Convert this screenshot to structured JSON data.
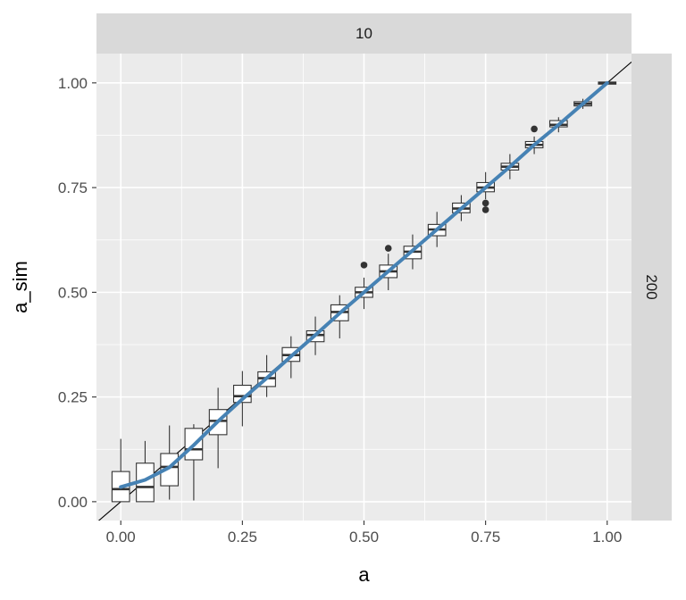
{
  "chart_data": {
    "type": "box",
    "xlabel": "a",
    "ylabel": "a_sim",
    "facet_col_label": "10",
    "facet_row_label": "200",
    "xlim": [
      -0.05,
      1.05
    ],
    "ylim": [
      -0.045,
      1.07
    ],
    "x_ticks": [
      0.0,
      0.25,
      0.5,
      0.75,
      1.0
    ],
    "x_tick_labels": [
      "0.00",
      "0.25",
      "0.50",
      "0.75",
      "1.00"
    ],
    "y_ticks": [
      0.0,
      0.25,
      0.5,
      0.75,
      1.0
    ],
    "y_tick_labels": [
      "0.00",
      "0.25",
      "0.50",
      "0.75",
      "1.00"
    ],
    "boxes": [
      {
        "x": 0.0,
        "ymin": 0.0,
        "q1": 0.0,
        "median": 0.03,
        "q3": 0.072,
        "ymax": 0.15
      },
      {
        "x": 0.05,
        "ymin": 0.0,
        "q1": 0.0,
        "median": 0.035,
        "q3": 0.092,
        "ymax": 0.145
      },
      {
        "x": 0.1,
        "ymin": 0.005,
        "q1": 0.038,
        "median": 0.083,
        "q3": 0.115,
        "ymax": 0.182
      },
      {
        "x": 0.15,
        "ymin": 0.003,
        "q1": 0.1,
        "median": 0.125,
        "q3": 0.175,
        "ymax": 0.185
      },
      {
        "x": 0.2,
        "ymin": 0.08,
        "q1": 0.16,
        "median": 0.193,
        "q3": 0.22,
        "ymax": 0.272
      },
      {
        "x": 0.25,
        "ymin": 0.18,
        "q1": 0.237,
        "median": 0.252,
        "q3": 0.278,
        "ymax": 0.312
      },
      {
        "x": 0.3,
        "ymin": 0.25,
        "q1": 0.275,
        "median": 0.295,
        "q3": 0.31,
        "ymax": 0.35
      },
      {
        "x": 0.35,
        "ymin": 0.295,
        "q1": 0.335,
        "median": 0.35,
        "q3": 0.368,
        "ymax": 0.395
      },
      {
        "x": 0.4,
        "ymin": 0.35,
        "q1": 0.382,
        "median": 0.398,
        "q3": 0.408,
        "ymax": 0.442
      },
      {
        "x": 0.45,
        "ymin": 0.39,
        "q1": 0.432,
        "median": 0.453,
        "q3": 0.47,
        "ymax": 0.493
      },
      {
        "x": 0.5,
        "ymin": 0.46,
        "q1": 0.488,
        "median": 0.5,
        "q3": 0.512,
        "ymax": 0.535
      },
      {
        "x": 0.55,
        "ymin": 0.505,
        "q1": 0.535,
        "median": 0.55,
        "q3": 0.565,
        "ymax": 0.592
      },
      {
        "x": 0.6,
        "ymin": 0.555,
        "q1": 0.58,
        "median": 0.597,
        "q3": 0.61,
        "ymax": 0.638
      },
      {
        "x": 0.65,
        "ymin": 0.608,
        "q1": 0.635,
        "median": 0.65,
        "q3": 0.662,
        "ymax": 0.692
      },
      {
        "x": 0.7,
        "ymin": 0.67,
        "q1": 0.69,
        "median": 0.7,
        "q3": 0.713,
        "ymax": 0.732
      },
      {
        "x": 0.75,
        "ymin": 0.722,
        "q1": 0.74,
        "median": 0.75,
        "q3": 0.762,
        "ymax": 0.787
      },
      {
        "x": 0.8,
        "ymin": 0.77,
        "q1": 0.792,
        "median": 0.8,
        "q3": 0.808,
        "ymax": 0.83
      },
      {
        "x": 0.85,
        "ymin": 0.83,
        "q1": 0.845,
        "median": 0.852,
        "q3": 0.86,
        "ymax": 0.872
      },
      {
        "x": 0.9,
        "ymin": 0.882,
        "q1": 0.895,
        "median": 0.9,
        "q3": 0.91,
        "ymax": 0.918
      },
      {
        "x": 0.95,
        "ymin": 0.938,
        "q1": 0.945,
        "median": 0.95,
        "q3": 0.955,
        "ymax": 0.962
      },
      {
        "x": 1.0,
        "ymin": 0.995,
        "q1": 0.997,
        "median": 1.0,
        "q3": 1.002,
        "ymax": 1.004
      }
    ],
    "outliers": [
      {
        "x": 0.5,
        "y": 0.565
      },
      {
        "x": 0.55,
        "y": 0.605
      },
      {
        "x": 0.75,
        "y": 0.713
      },
      {
        "x": 0.75,
        "y": 0.697
      },
      {
        "x": 0.85,
        "y": 0.89
      }
    ],
    "reference_line": {
      "slope": 1,
      "intercept": 0,
      "color": "#000000"
    },
    "smooth_line": {
      "color": "#4682b4",
      "x": [
        0.0,
        0.05,
        0.1,
        0.15,
        0.2,
        0.25,
        0.3,
        0.35,
        0.4,
        0.45,
        0.5,
        0.55,
        0.6,
        0.65,
        0.7,
        0.75,
        0.8,
        0.85,
        0.9,
        0.95,
        1.0
      ],
      "y": [
        0.035,
        0.052,
        0.082,
        0.135,
        0.192,
        0.245,
        0.295,
        0.347,
        0.398,
        0.45,
        0.5,
        0.55,
        0.6,
        0.65,
        0.7,
        0.75,
        0.8,
        0.852,
        0.9,
        0.95,
        1.0
      ]
    },
    "colors": {
      "panel_bg": "#ebebeb",
      "grid": "#ffffff",
      "strip_bg": "#d9d9d9",
      "box_fill": "#ffffff",
      "box_stroke": "#333333",
      "outlier": "#333333"
    },
    "grid": true
  }
}
